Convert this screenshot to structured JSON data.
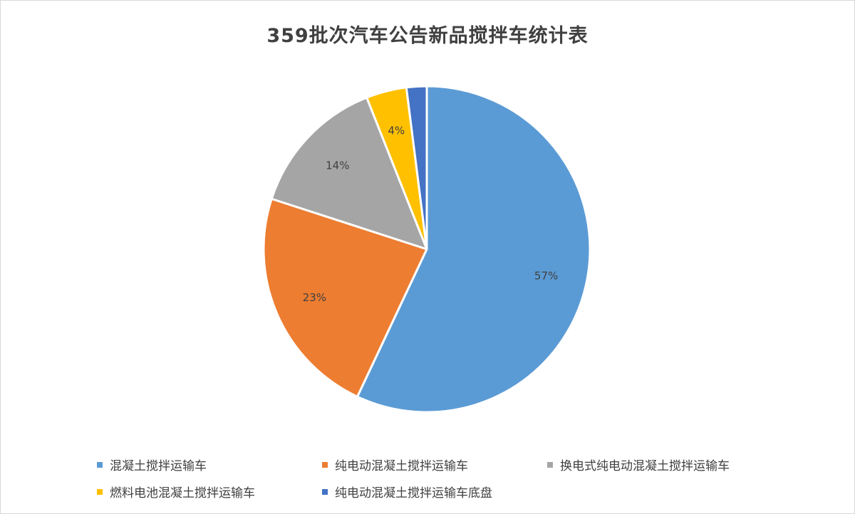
{
  "chart_data": {
    "type": "pie",
    "title": "359批次汽车公告新品搅拌车统计表",
    "categories": [
      "混凝土搅拌运输车",
      "纯电动混凝土搅拌运输车",
      "换电式纯电动混凝土搅拌运输车",
      "燃料电池混凝土搅拌运输车",
      "纯电动混凝土搅拌运输车底盘"
    ],
    "values": [
      57,
      23,
      14,
      4,
      2
    ],
    "data_labels": [
      "57%",
      "23%",
      "14%",
      "4%",
      ""
    ],
    "colors": [
      "#5b9bd5",
      "#ed7d31",
      "#a5a5a5",
      "#ffc000",
      "#4472c4"
    ],
    "legend_position": "bottom"
  }
}
